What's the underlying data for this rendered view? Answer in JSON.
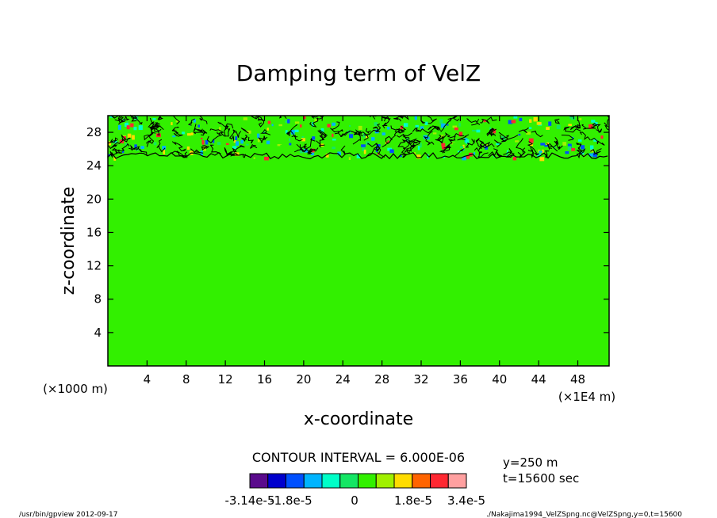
{
  "chart_data": {
    "type": "heatmap",
    "title": "Damping term of VelZ",
    "xlabel": "x-coordinate",
    "ylabel": "z-coordinate",
    "x_unit": "(×1E4 m)",
    "y_unit": "(×1000 m)",
    "xlim": [
      0,
      51.2
    ],
    "ylim": [
      0,
      30
    ],
    "x_ticks": [
      4,
      8,
      12,
      16,
      20,
      24,
      28,
      32,
      36,
      40,
      44,
      48
    ],
    "y_ticks": [
      4,
      8,
      12,
      16,
      20,
      24,
      28
    ],
    "noisy_layer_bottom": 25,
    "background_value": 0,
    "contour_interval": "CONTOUR INTERVAL = 6.000E-06",
    "colorbar": {
      "colors": [
        "#5a0a8c",
        "#0000cd",
        "#0050ff",
        "#00b4ff",
        "#00ffc8",
        "#14e664",
        "#32f000",
        "#a0f000",
        "#ffdc00",
        "#ff6400",
        "#ff2832",
        "#ffa0a0"
      ],
      "tick_labels": [
        "-3.14e-5",
        "-1.8e-5",
        "0",
        "1.8e-5",
        "3.4e-5"
      ]
    },
    "info": [
      "y=250 m",
      "t=15600 sec"
    ],
    "footer_left": "/usr/bin/gpview   2012-09-17",
    "footer_right": "./Nakajima1994_VelZSpng.nc@VelZSpng,y=0,t=15600"
  }
}
